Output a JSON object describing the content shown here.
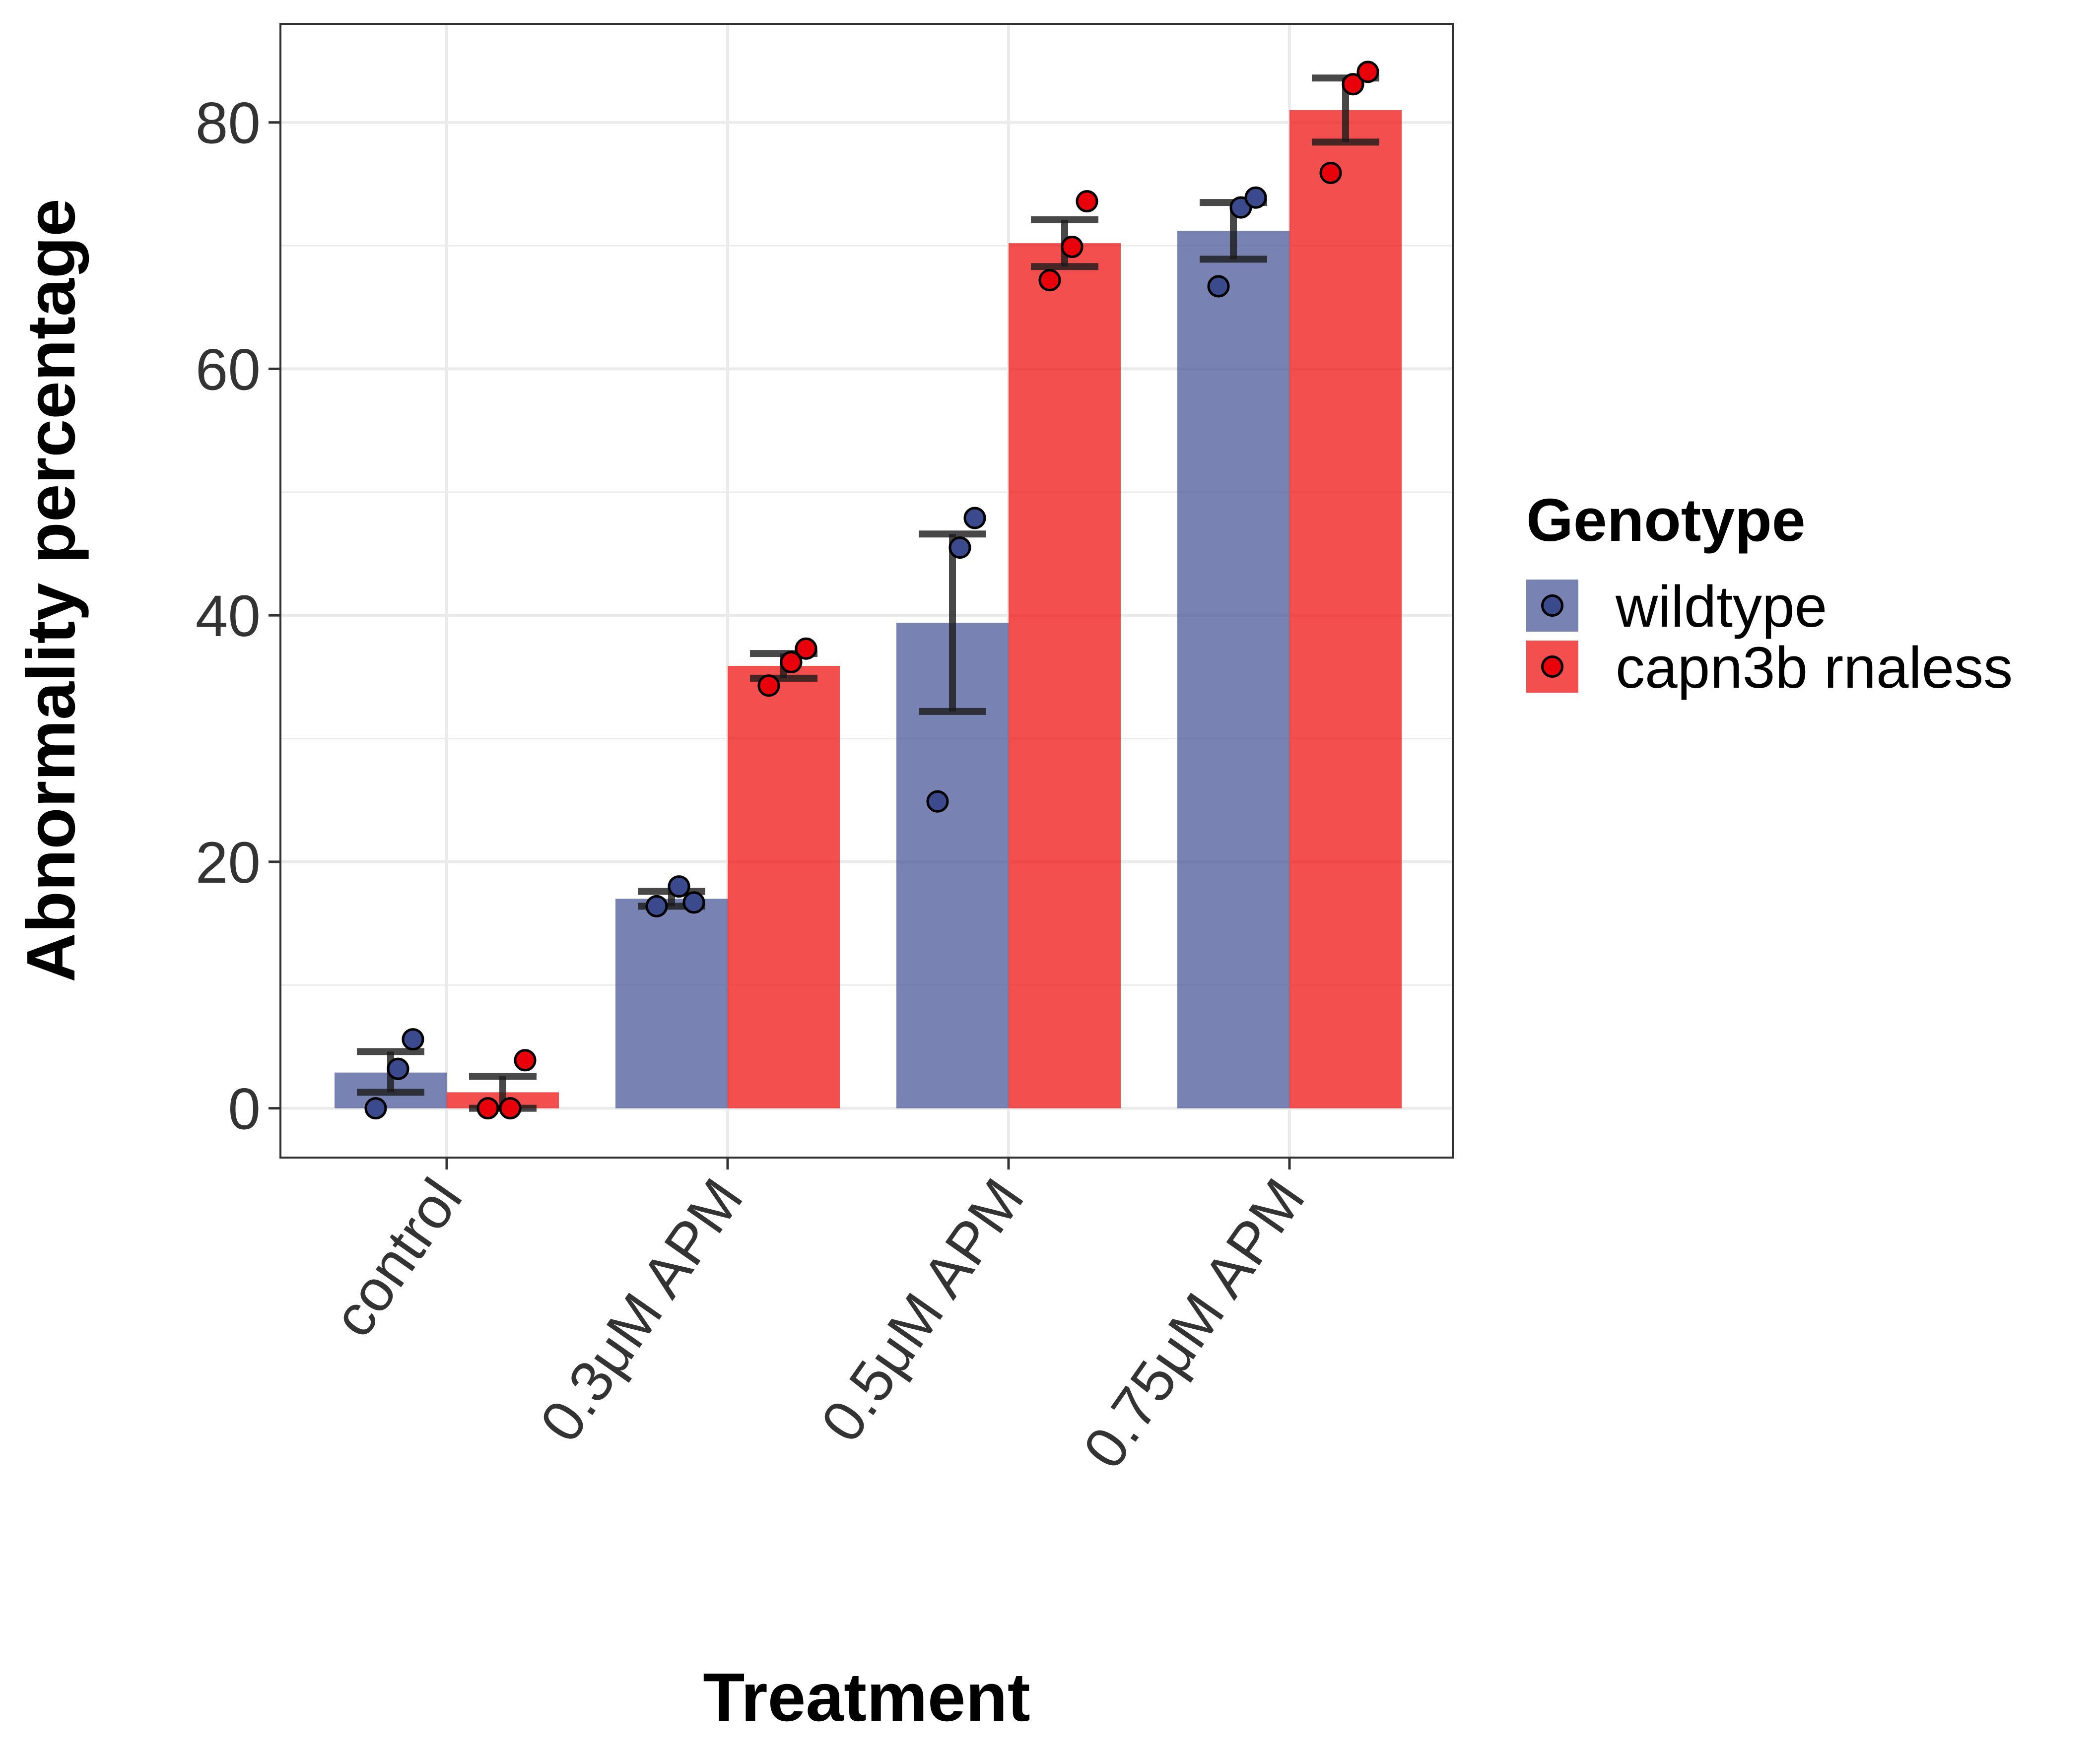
{
  "chart_data": {
    "type": "bar",
    "xlabel": "Treatment",
    "ylabel": "Abnormality percentage",
    "categories": [
      "control",
      "0.3μM APM",
      "0.5μM APM",
      "0.75μM APM"
    ],
    "ylim": [
      -4,
      88
    ],
    "yticks": [
      "0",
      "20",
      "40",
      "60",
      "80"
    ],
    "grid": true,
    "legend": {
      "title": "Genotype",
      "position": "right"
    },
    "series": [
      {
        "name": "wildtype",
        "color": "#4B5A9A",
        "point_color": "#3A4A8C",
        "values": [
          2.9,
          17.0,
          39.4,
          71.2
        ],
        "error": [
          [
            1.3,
            4.6
          ],
          [
            16.4,
            17.6
          ],
          [
            32.2,
            46.6
          ],
          [
            68.9,
            73.5
          ]
        ],
        "points": [
          [
            0,
            3.2,
            5.6
          ],
          [
            16.4,
            18.0,
            16.7
          ],
          [
            24.9,
            45.5,
            47.9
          ],
          [
            66.7,
            73.1,
            73.9
          ]
        ]
      },
      {
        "name": "capn3b rnaless",
        "color": "#F01414",
        "point_color": "#E8000B",
        "values": [
          1.3,
          35.9,
          70.2,
          81.0
        ],
        "error": [
          [
            0,
            2.6
          ],
          [
            34.9,
            36.9
          ],
          [
            68.3,
            72.1
          ],
          [
            78.4,
            83.6
          ]
        ],
        "points": [
          [
            0,
            0,
            3.9
          ],
          [
            34.3,
            36.2,
            37.3
          ],
          [
            67.2,
            69.9,
            73.6
          ],
          [
            75.9,
            83.1,
            84.1
          ]
        ]
      }
    ]
  }
}
